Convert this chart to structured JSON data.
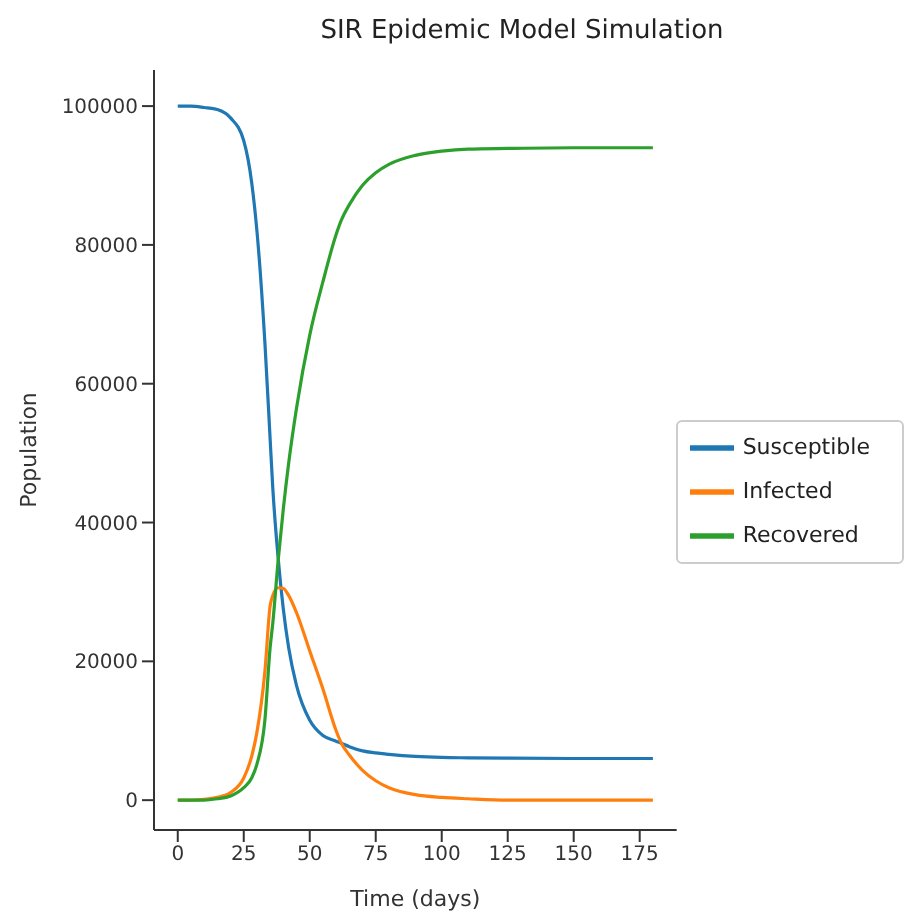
{
  "chart_data": {
    "type": "line",
    "title": "SIR Epidemic Model Simulation",
    "xlabel": "Time (days)",
    "ylabel": "Population",
    "x": [
      0,
      5,
      10,
      15,
      20,
      25,
      28,
      30,
      33,
      35,
      36,
      38,
      40,
      42,
      45,
      50,
      55,
      60,
      62,
      65,
      70,
      75,
      80,
      90,
      100,
      110,
      125,
      150,
      180
    ],
    "series": [
      {
        "name": "Susceptible",
        "color": "#1f77b4",
        "values": [
          100000,
          100000,
          99800,
          99500,
          98300,
          95000,
          89000,
          82000,
          66000,
          52000,
          45000,
          35000,
          27500,
          22000,
          16500,
          11500,
          9300,
          8500,
          8200,
          7700,
          7100,
          6800,
          6600,
          6300,
          6150,
          6100,
          6050,
          6000,
          6000
        ]
      },
      {
        "name": "Infected",
        "color": "#ff7f0e",
        "values": [
          0,
          0,
          100,
          400,
          1100,
          3200,
          6300,
          9800,
          18500,
          28000,
          29500,
          30600,
          30500,
          29500,
          27000,
          21500,
          16000,
          10000,
          8200,
          6500,
          4300,
          2800,
          1800,
          800,
          400,
          200,
          0,
          0,
          0
        ]
      },
      {
        "name": "Recovered",
        "color": "#2ca02c",
        "values": [
          0,
          0,
          0,
          200,
          600,
          1800,
          3200,
          5200,
          11500,
          22000,
          25500,
          34400,
          42000,
          48500,
          56500,
          67000,
          74700,
          81500,
          83600,
          85800,
          88600,
          90400,
          91600,
          92900,
          93500,
          93800,
          93900,
          94000,
          94000
        ]
      }
    ],
    "xlim": [
      -9,
      189
    ],
    "xticks": [
      0,
      25,
      50,
      75,
      100,
      125,
      150,
      175
    ],
    "ylim": [
      -4300,
      105200
    ],
    "yticks": [
      0,
      20000,
      40000,
      60000,
      80000,
      100000
    ],
    "legend": "right",
    "grid": false,
    "marker": "none",
    "line_style": "solid"
  }
}
